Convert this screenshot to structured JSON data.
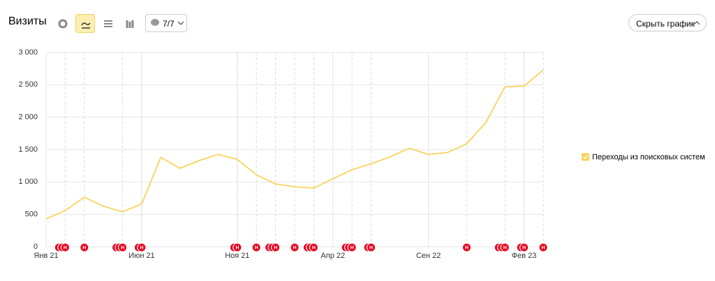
{
  "toolbar": {
    "filter_label": "7/7",
    "hide_button": "Скрыть график"
  },
  "chart_data": {
    "type": "line",
    "title": "Визиты",
    "categories": [
      "Янв 21",
      null,
      null,
      null,
      null,
      "Июн 21",
      null,
      null,
      null,
      null,
      "Ноя 21",
      null,
      null,
      null,
      null,
      "Апр 22",
      null,
      null,
      null,
      null,
      "Сен 22",
      null,
      null,
      null,
      null,
      "Фев 23",
      null
    ],
    "series": [
      {
        "name": "Переходы из поисковых систем",
        "color": "#f9d35c",
        "values": [
          430,
          560,
          765,
          625,
          540,
          660,
          1380,
          1210,
          1330,
          1425,
          1350,
          1110,
          970,
          925,
          905,
          1050,
          1190,
          1280,
          1390,
          1520,
          1425,
          1455,
          1590,
          1920,
          2470,
          2480,
          2730
        ]
      }
    ],
    "ylim": [
      0,
      3000
    ],
    "yticks": [
      0,
      500,
      {
        "value": 1000,
        "label": "1 000"
      },
      {
        "value": 1500,
        "label": "1 500"
      },
      {
        "value": 2000,
        "label": "2 000"
      },
      {
        "value": 2500,
        "label": "2 500"
      },
      {
        "value": 3000,
        "label": "3 000"
      }
    ],
    "grid": true,
    "note_label": "Н",
    "notes": [
      0,
      3,
      1,
      0,
      3,
      2,
      0,
      0,
      0,
      0,
      2,
      1,
      3,
      1,
      3,
      0,
      3,
      2,
      0,
      0,
      0,
      0,
      1,
      0,
      3,
      2,
      1
    ]
  }
}
